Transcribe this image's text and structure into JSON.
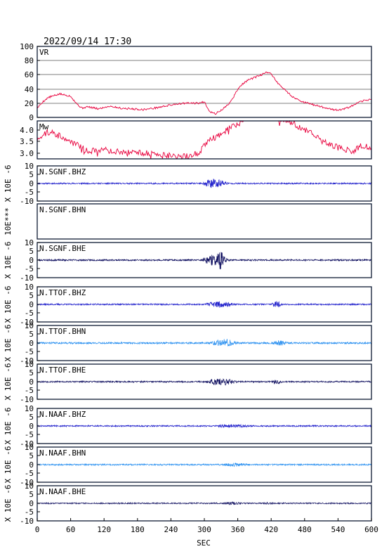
{
  "header": {
    "timestamp": "2022/09/14 17:30"
  },
  "x_axis": {
    "label": "SEC",
    "ticks": [
      0,
      60,
      120,
      180,
      240,
      300,
      360,
      420,
      480,
      540,
      600
    ],
    "xlim": [
      0,
      600
    ]
  },
  "colors": {
    "red": "#e8003c",
    "blue": "#2222cc",
    "lightblue": "#2a90f0",
    "navy": "#101060",
    "frame": "#0d1a33"
  },
  "chart_data": [
    {
      "type": "line",
      "title": "VR",
      "ylim": [
        0,
        100
      ],
      "yticks": [
        0,
        20,
        40,
        60,
        80,
        100
      ],
      "grid": true,
      "color": "red",
      "x": [
        0,
        10,
        20,
        40,
        60,
        70,
        80,
        90,
        110,
        130,
        150,
        170,
        190,
        210,
        230,
        250,
        270,
        290,
        300,
        310,
        320,
        330,
        340,
        350,
        360,
        370,
        380,
        390,
        400,
        410,
        420,
        430,
        440,
        450,
        460,
        480,
        500,
        520,
        540,
        560,
        580,
        600
      ],
      "y": [
        13,
        22,
        28,
        33,
        30,
        20,
        13,
        15,
        12,
        16,
        13,
        12,
        11,
        13,
        16,
        19,
        20,
        20,
        22,
        8,
        5,
        10,
        16,
        25,
        40,
        48,
        53,
        56,
        59,
        63,
        62,
        50,
        42,
        35,
        28,
        21,
        17,
        13,
        10,
        14,
        22,
        26
      ]
    },
    {
      "type": "line",
      "title": "Mw",
      "ylim": [
        3.0,
        4.0
      ],
      "yticks": [
        "3.0",
        "3.5",
        "4.0"
      ],
      "color": "red",
      "x": [
        0,
        10,
        20,
        40,
        60,
        80,
        90,
        110,
        140,
        170,
        200,
        230,
        260,
        290,
        300,
        310,
        330,
        350,
        370,
        390,
        410,
        420,
        430,
        450,
        470,
        490,
        510,
        530,
        550,
        570,
        580,
        600
      ],
      "y": [
        3.5,
        3.65,
        3.7,
        3.62,
        3.45,
        3.3,
        3.2,
        3.25,
        3.2,
        3.18,
        3.15,
        3.1,
        3.05,
        3.15,
        3.35,
        3.5,
        3.65,
        3.85,
        4.0,
        4.15,
        4.2,
        4.25,
        4.1,
        4.0,
        3.85,
        3.7,
        3.5,
        3.35,
        3.25,
        3.2,
        3.35,
        3.3
      ]
    },
    {
      "type": "line",
      "title": "N.SGNF.BHZ",
      "ylabel": "X 10E -6",
      "ylim": [
        -10,
        10
      ],
      "yticks": [
        -10,
        -5,
        0,
        5,
        10
      ],
      "color": "blue",
      "noise": 0.4,
      "seed": 11,
      "bursts": [
        {
          "start": 295,
          "end": 345,
          "amp": 3.0
        }
      ]
    },
    {
      "type": "line",
      "title": "N.SGNF.BHN",
      "ylabel": "10E***",
      "ylim": [],
      "yticks": [],
      "color": "blue",
      "empty": true
    },
    {
      "type": "line",
      "title": "N.SGNF.BHE",
      "ylabel": "X 10E -6",
      "ylim": [
        -10,
        10
      ],
      "yticks": [
        -10,
        -5,
        0,
        5,
        10
      ],
      "color": "navy",
      "noise": 0.45,
      "seed": 23,
      "bursts": [
        {
          "start": 295,
          "end": 345,
          "amp": 3.5
        },
        {
          "start": 325,
          "end": 335,
          "amp": 4.5
        }
      ]
    },
    {
      "type": "line",
      "title": "N.TTOF.BHZ",
      "ylabel": "X 10E -6",
      "ylim": [
        -10,
        10
      ],
      "yticks": [
        -10,
        -5,
        0,
        5,
        10
      ],
      "color": "blue",
      "noise": 0.4,
      "seed": 37,
      "bursts": [
        {
          "start": 300,
          "end": 355,
          "amp": 1.8
        },
        {
          "start": 420,
          "end": 440,
          "amp": 1.8
        }
      ]
    },
    {
      "type": "line",
      "title": "N.TTOF.BHN",
      "ylabel": "X 10E -6",
      "ylim": [
        -10,
        10
      ],
      "yticks": [
        -10,
        -5,
        0,
        5,
        10
      ],
      "color": "lightblue",
      "noise": 0.5,
      "seed": 41,
      "bursts": [
        {
          "start": 310,
          "end": 360,
          "amp": 2.2
        },
        {
          "start": 420,
          "end": 450,
          "amp": 1.2
        }
      ]
    },
    {
      "type": "line",
      "title": "N.TTOF.BHE",
      "ylabel": "X 10E -6",
      "ylim": [
        -10,
        10
      ],
      "yticks": [
        -10,
        -5,
        0,
        5,
        10
      ],
      "color": "navy",
      "noise": 0.4,
      "seed": 53,
      "bursts": [
        {
          "start": 300,
          "end": 360,
          "amp": 2.0
        },
        {
          "start": 420,
          "end": 440,
          "amp": 1.6
        }
      ]
    },
    {
      "type": "line",
      "title": "N.NAAF.BHZ",
      "ylabel": "X 10E -6",
      "ylim": [
        -10,
        10
      ],
      "yticks": [
        -10,
        -5,
        0,
        5,
        10
      ],
      "color": "blue",
      "noise": 0.4,
      "seed": 61,
      "bursts": [
        {
          "start": 320,
          "end": 380,
          "amp": 0.8
        }
      ]
    },
    {
      "type": "line",
      "title": "N.NAAF.BHN",
      "ylabel": "X 10E -6",
      "ylim": [
        -10,
        10
      ],
      "yticks": [
        -10,
        -5,
        0,
        5,
        10
      ],
      "color": "lightblue",
      "noise": 0.4,
      "seed": 71,
      "bursts": [
        {
          "start": 330,
          "end": 380,
          "amp": 0.8
        }
      ]
    },
    {
      "type": "line",
      "title": "N.NAAF.BHE",
      "ylabel": "X 10E -6",
      "ylim": [
        -10,
        10
      ],
      "yticks": [
        -10,
        -5,
        0,
        5,
        10
      ],
      "color": "navy",
      "noise": 0.35,
      "seed": 83,
      "bursts": [
        {
          "start": 330,
          "end": 370,
          "amp": 0.6
        },
        {
          "start": 405,
          "end": 425,
          "amp": 0.6
        }
      ]
    }
  ]
}
